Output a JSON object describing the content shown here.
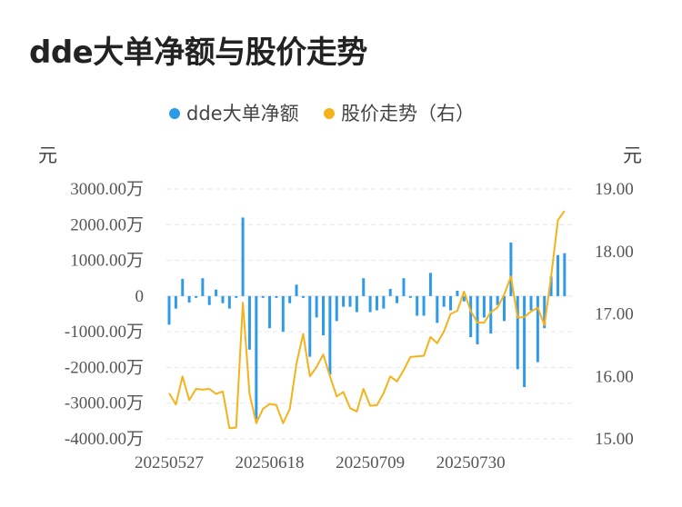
{
  "chart_data": {
    "type": "bar+line",
    "title": "dde大单净额与股价走势",
    "unit_left": "元",
    "unit_right": "元",
    "legend": [
      {
        "label": "dde大单净额",
        "color": "#2f9be8"
      },
      {
        "label": "股价走势（右）",
        "color": "#f5b21b"
      }
    ],
    "y_left": {
      "ticks": [
        "3000.00万",
        "2000.00万",
        "1000.00万",
        "0",
        "-1000.00万",
        "-2000.00万",
        "-3000.00万",
        "-4000.00万"
      ],
      "tick_values": [
        3000,
        2000,
        1000,
        0,
        -1000,
        -2000,
        -3000,
        -4000
      ],
      "ylim": [
        -4000,
        3000
      ],
      "unit": "万元"
    },
    "y_right": {
      "ticks": [
        "19.00",
        "18.00",
        "17.00",
        "16.00",
        "15.00"
      ],
      "tick_values": [
        19,
        18,
        17,
        16,
        15
      ],
      "ylim": [
        15,
        19
      ]
    },
    "x_ticks": [
      {
        "label": "20250527",
        "index": 0
      },
      {
        "label": "20250618",
        "index": 15
      },
      {
        "label": "20250709",
        "index": 30
      },
      {
        "label": "20250730",
        "index": 45
      }
    ],
    "series": [
      {
        "name": "dde大单净额",
        "kind": "bar",
        "color": "#2f9be8",
        "values": [
          -800,
          -350,
          480,
          -180,
          -50,
          500,
          -250,
          180,
          -200,
          -350,
          -50,
          2200,
          -1500,
          -3450,
          -50,
          -900,
          -50,
          -1000,
          -200,
          320,
          -50,
          -1700,
          -600,
          -1100,
          -2200,
          -700,
          -300,
          -300,
          -450,
          500,
          -450,
          -400,
          -350,
          200,
          -200,
          500,
          -50,
          -550,
          -550,
          650,
          -750,
          -300,
          -400,
          150,
          -150,
          -1150,
          -1350,
          -600,
          -1050,
          -250,
          -700,
          1500,
          -2050,
          -2550,
          -400,
          -1850,
          -900,
          550,
          1150,
          1200
        ]
      },
      {
        "name": "股价走势（右）",
        "kind": "line",
        "color": "#f5b21b",
        "values": [
          15.73,
          15.55,
          16.0,
          15.62,
          15.8,
          15.79,
          15.8,
          15.72,
          15.76,
          15.17,
          15.18,
          17.18,
          15.72,
          15.25,
          15.48,
          15.56,
          15.54,
          15.25,
          15.48,
          16.2,
          16.68,
          16.0,
          16.15,
          16.35,
          16.0,
          15.68,
          15.75,
          15.49,
          15.44,
          15.8,
          15.53,
          15.54,
          15.73,
          16.0,
          15.92,
          16.1,
          16.31,
          16.32,
          16.33,
          16.63,
          16.53,
          16.72,
          17.0,
          17.05,
          17.36,
          17.05,
          16.86,
          16.86,
          17.03,
          17.1,
          17.31,
          17.6,
          16.94,
          16.95,
          17.04,
          17.1,
          16.82,
          17.6,
          18.5,
          18.65
        ]
      }
    ]
  }
}
